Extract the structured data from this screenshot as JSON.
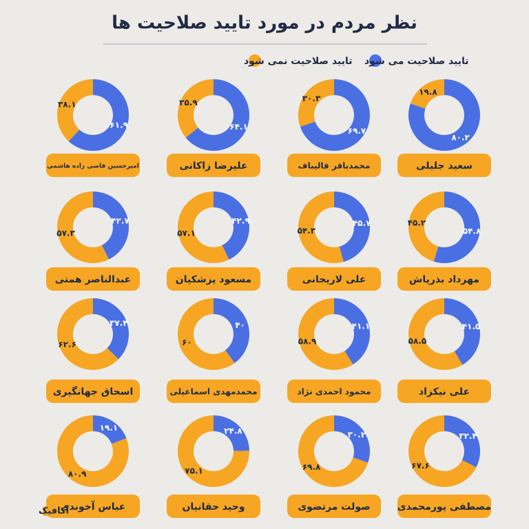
{
  "title": "نظر مردم در مورد تایید صلاحیت ها",
  "legend": [
    {
      "name": "تایید صلاحیت می شود",
      "color": "#4a6fe3"
    },
    {
      "name": "تایید صلاحیت نمی شود",
      "color": "#f6a623"
    }
  ],
  "brand": "آکافیک",
  "chart_data": [
    {
      "type": "donut",
      "title": "سعید جلیلی",
      "values": [
        80.2,
        19.8
      ],
      "value_labels": [
        "۸۰.۲",
        "۱۹.۸"
      ]
    },
    {
      "type": "donut",
      "title": "محمدباقر قالیباف",
      "values": [
        69.7,
        30.3
      ],
      "value_labels": [
        "۶۹.۷",
        "۳۰.۳"
      ]
    },
    {
      "type": "donut",
      "title": "علیرضا زاکانی",
      "values": [
        64.1,
        35.9
      ],
      "value_labels": [
        "۶۴.۱",
        "۳۵.۹"
      ]
    },
    {
      "type": "donut",
      "title": "امیرحسین قاضی زاده هاشمی",
      "values": [
        61.9,
        38.1
      ],
      "value_labels": [
        "۶۱.۹",
        "۳۸.۱"
      ]
    },
    {
      "type": "donut",
      "title": "مهرداد بذرپاش",
      "values": [
        54.8,
        45.2
      ],
      "value_labels": [
        "۵۴.۸",
        "۴۵.۲"
      ]
    },
    {
      "type": "donut",
      "title": "علی لاریجانی",
      "values": [
        45.7,
        54.3
      ],
      "value_labels": [
        "۴۵.۷",
        "۵۴.۳"
      ]
    },
    {
      "type": "donut",
      "title": "مسعود پزشکیان",
      "values": [
        42.9,
        57.1
      ],
      "value_labels": [
        "۴۲.۹",
        "۵۷.۱"
      ]
    },
    {
      "type": "donut",
      "title": "عبدالناصر همتی",
      "values": [
        42.7,
        57.3
      ],
      "value_labels": [
        "۴۲.۷",
        "۵۷.۳"
      ]
    },
    {
      "type": "donut",
      "title": "علی نیکزاد",
      "values": [
        41.5,
        58.5
      ],
      "value_labels": [
        "۴۱.۵",
        "۵۸.۵"
      ]
    },
    {
      "type": "donut",
      "title": "محمود احمدی نژاد",
      "values": [
        41.1,
        58.9
      ],
      "value_labels": [
        "۴۱.۱",
        "۵۸.۹"
      ]
    },
    {
      "type": "donut",
      "title": "محمدمهدی اسماعیلی",
      "values": [
        40,
        60
      ],
      "value_labels": [
        "۴۰",
        "۶۰"
      ]
    },
    {
      "type": "donut",
      "title": "اسحاق جهانگیری",
      "values": [
        37.4,
        62.6
      ],
      "value_labels": [
        "۳۷.۴",
        "۶۲.۶"
      ]
    },
    {
      "type": "donut",
      "title": "مصطفی پورمحمدی",
      "values": [
        32.4,
        67.6
      ],
      "value_labels": [
        "۳۲.۴",
        "۶۷.۶"
      ]
    },
    {
      "type": "donut",
      "title": "صولت مرتضوی",
      "values": [
        30.2,
        69.8
      ],
      "value_labels": [
        "۳۰.۲",
        "۶۹.۸"
      ]
    },
    {
      "type": "donut",
      "title": "وحید حقانیان",
      "values": [
        24.8,
        75.1
      ],
      "value_labels": [
        "۲۴.۸",
        "۷۵.۱"
      ]
    },
    {
      "type": "donut",
      "title": "عباس آخوندی",
      "values": [
        19.1,
        80.9
      ],
      "value_labels": [
        "۱۹.۱",
        "۸۰.۹"
      ]
    }
  ]
}
